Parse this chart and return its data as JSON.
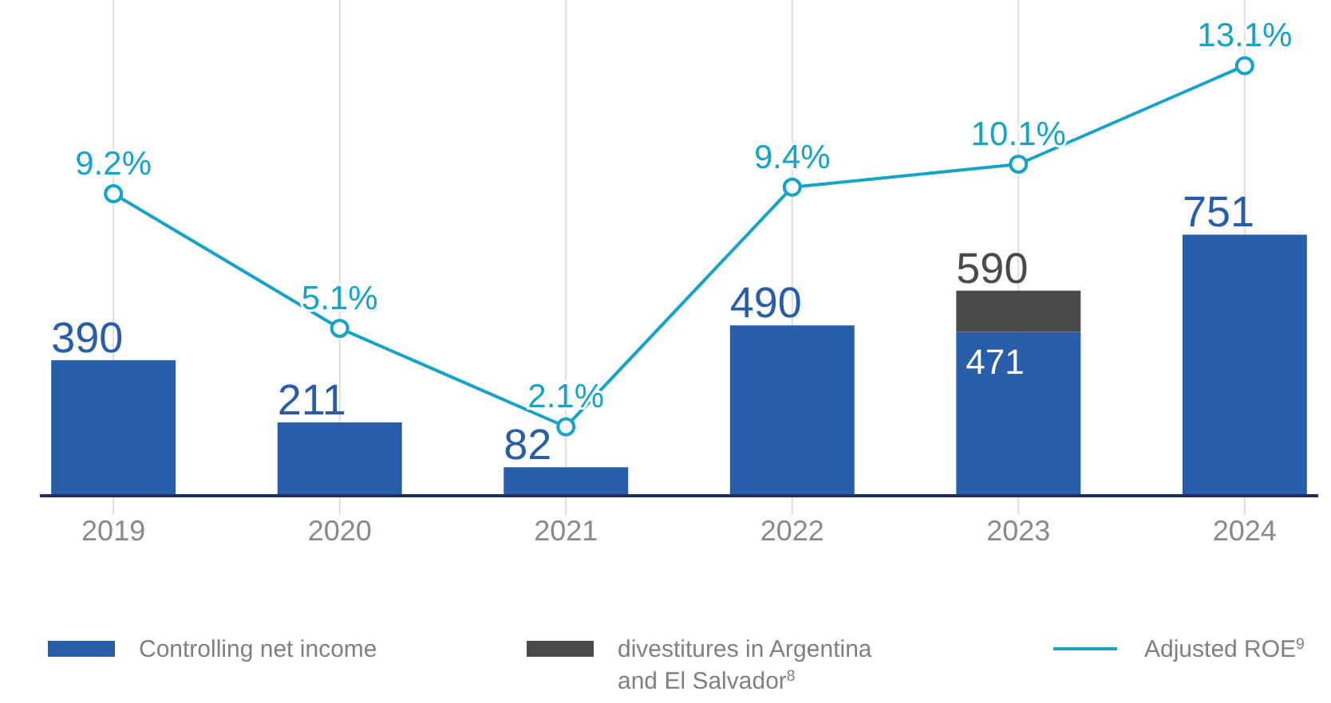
{
  "chart_data": {
    "type": "bar",
    "stacked": true,
    "categories": [
      "2019",
      "2020",
      "2021",
      "2022",
      "2023",
      "2024"
    ],
    "series": [
      {
        "name": "Controlling net income",
        "color": "#275da9",
        "values": [
          390,
          211,
          82,
          490,
          471,
          751
        ],
        "value_labels": [
          "390",
          "211",
          "82",
          "490",
          "471",
          "751"
        ]
      },
      {
        "name": "divestitures in Argentina and El Salvador$^{8}$",
        "color": "#4a4a4c",
        "values": [
          null,
          null,
          null,
          null,
          119,
          null
        ]
      },
      {
        "name": "Adjusted ROE$^{9}$",
        "type": "line",
        "axis": "y2",
        "color": "#15a3c7",
        "marker": "circle",
        "values": [
          9.2,
          5.1,
          2.1,
          9.4,
          10.1,
          13.1
        ],
        "value_labels": [
          "9.2%",
          "5.1%",
          "2.1%",
          "9.4%",
          "10.1%",
          "13.1%"
        ]
      }
    ],
    "totals": [
      null,
      null,
      null,
      null,
      "590",
      null
    ],
    "ylim": [
      0,
      1426
    ],
    "y2lim": [
      0,
      15.1
    ],
    "tick_labels": "x",
    "grid": "x",
    "legend": "bottom"
  }
}
